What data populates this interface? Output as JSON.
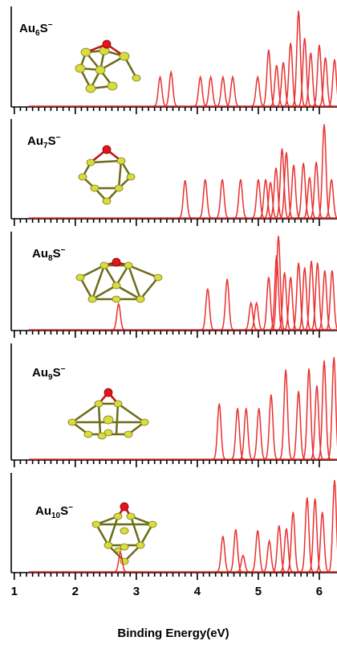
{
  "chart_data": [
    {
      "type": "spectrum",
      "label_parts": [
        "Au",
        "6",
        "S",
        "−"
      ],
      "color": "#e8302f",
      "x": [
        3.39,
        3.57,
        4.05,
        4.22,
        4.42,
        4.58,
        4.99,
        5.17,
        5.3,
        5.41,
        5.53,
        5.66,
        5.76,
        5.86,
        6.0,
        6.1,
        6.25
      ],
      "values": [
        0.3,
        0.35,
        0.3,
        0.3,
        0.3,
        0.3,
        0.3,
        0.58,
        0.42,
        0.45,
        0.65,
        0.98,
        0.7,
        0.55,
        0.63,
        0.5,
        0.48
      ],
      "xlim": [
        0.95,
        6.29
      ],
      "ylim": [
        0,
        1
      ],
      "xticks": [
        1,
        2,
        3,
        4,
        5,
        6
      ]
    },
    {
      "type": "spectrum",
      "label_parts": [
        "Au",
        "7",
        "S",
        "−"
      ],
      "color": "#e8302f",
      "x": [
        3.8,
        4.13,
        4.41,
        4.71,
        5.0,
        5.12,
        5.2,
        5.29,
        5.39,
        5.46,
        5.58,
        5.74,
        5.84,
        5.95,
        6.08,
        6.2
      ],
      "values": [
        0.39,
        0.4,
        0.4,
        0.4,
        0.4,
        0.4,
        0.37,
        0.52,
        0.72,
        0.68,
        0.55,
        0.57,
        0.42,
        0.58,
        0.97,
        0.4
      ],
      "xlim": [
        0.95,
        6.29
      ],
      "ylim": [
        0,
        1
      ],
      "xticks": [
        1,
        2,
        3,
        4,
        5,
        6
      ]
    },
    {
      "type": "spectrum",
      "label_parts": [
        "Au",
        "8",
        "S",
        "−"
      ],
      "color": "#e8302f",
      "x": [
        2.71,
        4.17,
        4.49,
        4.88,
        4.97,
        5.17,
        5.3,
        5.33,
        5.43,
        5.53,
        5.66,
        5.76,
        5.87,
        5.97,
        6.09,
        6.21
      ],
      "values": [
        0.27,
        0.43,
        0.53,
        0.28,
        0.28,
        0.55,
        0.78,
        0.98,
        0.6,
        0.55,
        0.7,
        0.65,
        0.72,
        0.7,
        0.62,
        0.62
      ],
      "xlim": [
        0.95,
        6.29
      ],
      "ylim": [
        0,
        1
      ],
      "xticks": [
        1,
        2,
        3,
        4,
        5,
        6
      ]
    },
    {
      "type": "spectrum",
      "label_parts": [
        "Au",
        "9",
        "S",
        "−"
      ],
      "color": "#e8302f",
      "x": [
        4.36,
        4.66,
        4.8,
        5.01,
        5.21,
        5.45,
        5.66,
        5.83,
        5.96,
        6.08,
        6.24
      ],
      "values": [
        0.49,
        0.45,
        0.45,
        0.45,
        0.57,
        0.79,
        0.6,
        0.8,
        0.65,
        0.87,
        0.9
      ],
      "xlim": [
        0.95,
        6.29
      ],
      "ylim": [
        0,
        1
      ],
      "xticks": [
        1,
        2,
        3,
        4,
        5,
        6
      ]
    },
    {
      "type": "spectrum",
      "label_parts": [
        "Au",
        "10",
        "S",
        "−"
      ],
      "color": "#e8302f",
      "x": [
        2.74,
        4.42,
        4.63,
        4.75,
        4.99,
        5.18,
        5.34,
        5.46,
        5.57,
        5.8,
        5.93,
        6.05,
        6.25
      ],
      "values": [
        0.2,
        0.37,
        0.44,
        0.17,
        0.43,
        0.32,
        0.48,
        0.45,
        0.62,
        0.77,
        0.76,
        0.62,
        0.95
      ],
      "xlim": [
        0.95,
        6.29
      ],
      "ylim": [
        0,
        1
      ],
      "xticks": [
        1,
        2,
        3,
        4,
        5,
        6
      ],
      "xlabel": "Binding Energy(eV)"
    }
  ]
}
